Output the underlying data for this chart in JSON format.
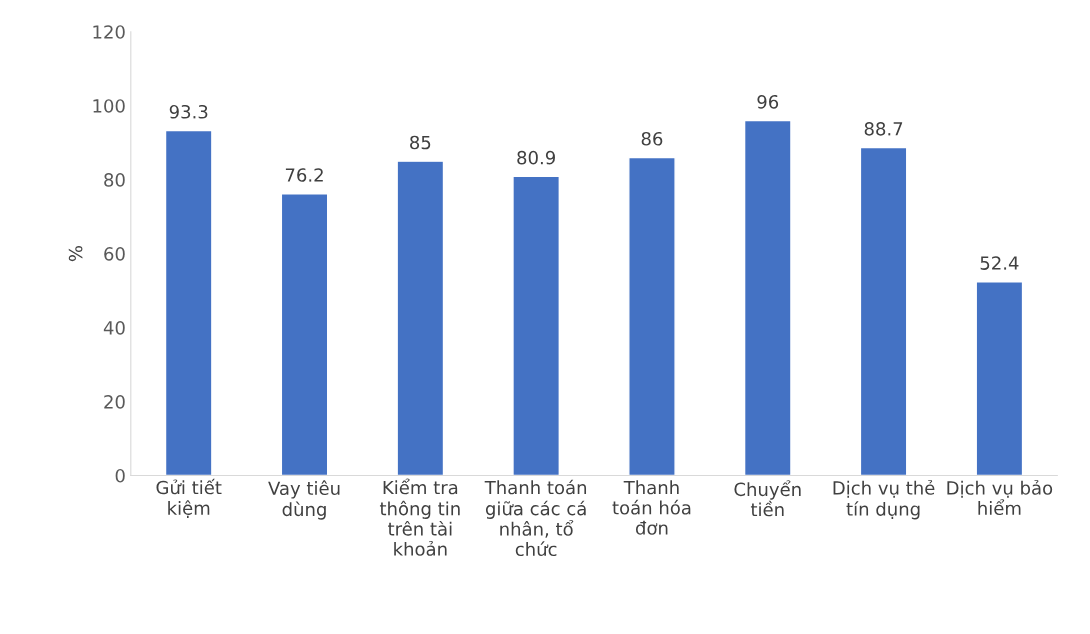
{
  "chart_data": {
    "type": "bar",
    "ylabel": "%",
    "categories": [
      "Gửi tiết\nkiệm",
      "Vay tiêu\ndùng",
      "Kiểm tra\nthông tin\ntrên tài\nkhoản",
      "Thanh toán\ngiữa các cá\nnhân, tổ\nchức",
      "Thanh\ntoán hóa\nđơn",
      "Chuyển\ntiền",
      "Dịch vụ thẻ\ntín dụng",
      "Dịch vụ bảo\nhiểm"
    ],
    "values": [
      93.3,
      76.2,
      85,
      80.9,
      86,
      96,
      88.7,
      52.4
    ],
    "color": "#4472c4",
    "ylim": [
      0,
      120
    ],
    "yticks": [
      0,
      20,
      40,
      60,
      80,
      100,
      120
    ],
    "grid": false,
    "data_labels": true
  }
}
